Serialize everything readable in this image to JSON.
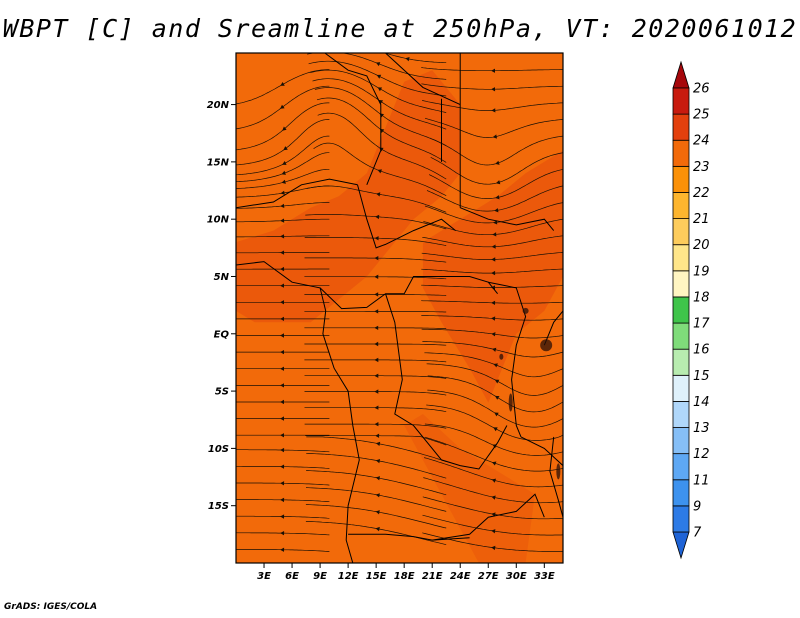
{
  "title": "WBPT [C] and Sreamline at 250hPa, VT: 2020061012",
  "credit": "GrADS: IGES/COLA",
  "map": {
    "lon_ticks": [
      "3E",
      "6E",
      "9E",
      "12E",
      "15E",
      "18E",
      "21E",
      "24E",
      "27E",
      "30E",
      "33E"
    ],
    "lat_ticks": [
      "20N",
      "15N",
      "10N",
      "5N",
      "EQ",
      "5S",
      "10S",
      "15S"
    ],
    "lon_range": [
      0,
      35
    ],
    "lat_range": [
      -20,
      24.5
    ],
    "base_color": "#f26a0a",
    "warm_color": "#e64b0c"
  },
  "colorbar": {
    "labels": [
      "7",
      "9",
      "11",
      "12",
      "13",
      "14",
      "15",
      "16",
      "17",
      "18",
      "19",
      "20",
      "21",
      "22",
      "23",
      "24",
      "25",
      "26"
    ],
    "colors": [
      "#1e63d6",
      "#2d7be6",
      "#3d92ee",
      "#5ea8f4",
      "#86bff7",
      "#b0d7fa",
      "#dff1fb",
      "#b8ecb0",
      "#7fdc7a",
      "#3fc44a",
      "#fff5c2",
      "#ffe68a",
      "#fdcc5c",
      "#fdb52e",
      "#fb9108",
      "#f26a0a",
      "#e3400d",
      "#c81a0e",
      "#a6070b"
    ]
  }
}
